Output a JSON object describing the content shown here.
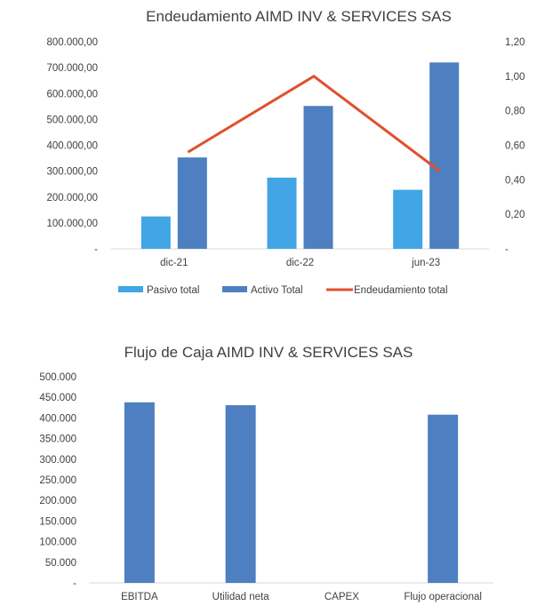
{
  "chart_data": [
    {
      "type": "bar",
      "title": "Endeudamiento AIMD INV & SERVICES SAS",
      "categories": [
        "dic-21",
        "dic-22",
        "jun-23"
      ],
      "series": [
        {
          "name": "Pasivo total",
          "kind": "bar",
          "axis": "left",
          "color": "#41A5E6",
          "values": [
            125000,
            275000,
            228000
          ]
        },
        {
          "name": "Activo Total",
          "kind": "bar",
          "axis": "left",
          "color": "#4E7FC1",
          "values": [
            353000,
            552000,
            720000
          ]
        },
        {
          "name": "Endeudamiento total",
          "kind": "line",
          "axis": "right",
          "color": "#E0502D",
          "values": [
            0.56,
            1.0,
            0.45
          ]
        }
      ],
      "ylim": [
        0,
        800000
      ],
      "y2lim": [
        0,
        1.2
      ],
      "yticks": [
        "-",
        "100.000,00",
        "200.000,00",
        "300.000,00",
        "400.000,00",
        "500.000,00",
        "600.000,00",
        "700.000,00",
        "800.000,00"
      ],
      "y2ticks": [
        "-",
        "0,20",
        "0,40",
        "0,60",
        "0,80",
        "1,00",
        "1,20"
      ],
      "legend": "bottom",
      "grid": false
    },
    {
      "type": "bar",
      "title": "Flujo de Caja AIMD INV & SERVICES SAS",
      "categories": [
        "EBITDA",
        "Utilidad neta",
        "CAPEX",
        "Flujo operacional"
      ],
      "series": [
        {
          "color": "#4E7FC1",
          "values": [
            438000,
            431000,
            0,
            408000
          ]
        }
      ],
      "ylim": [
        0,
        500000
      ],
      "yticks": [
        "-",
        "50.000",
        "100.000",
        "150.000",
        "200.000",
        "250.000",
        "300.000",
        "350.000",
        "400.000",
        "450.000",
        "500.000"
      ],
      "legend": "none",
      "grid": false
    }
  ]
}
